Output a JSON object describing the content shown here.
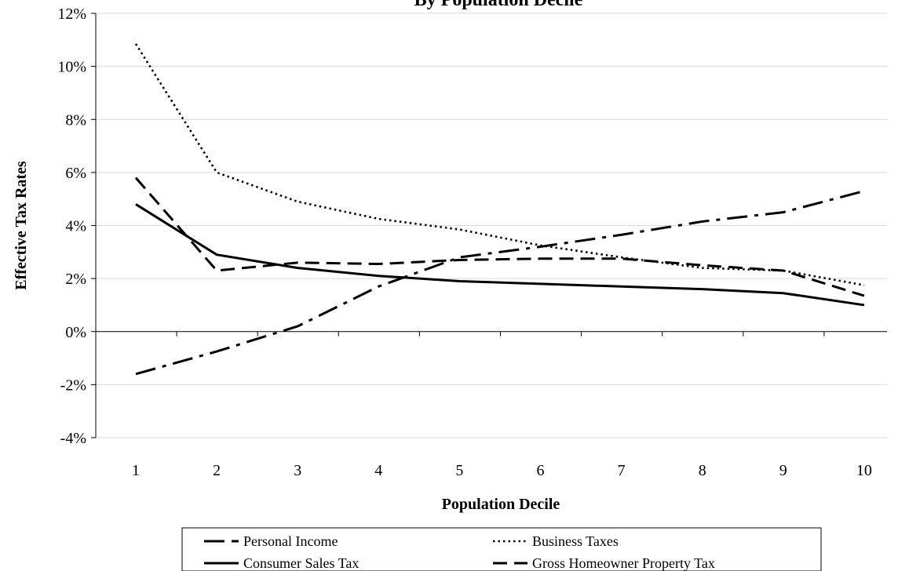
{
  "chart_data": {
    "type": "line",
    "title": "By Population Decile",
    "xlabel": "Population Decile",
    "ylabel": "Effective Tax Rates",
    "x": [
      1,
      2,
      3,
      4,
      5,
      6,
      7,
      8,
      9,
      10
    ],
    "x_tick_labels": [
      "1",
      "2",
      "3",
      "4",
      "5",
      "6",
      "7",
      "8",
      "9",
      "10"
    ],
    "ylim": [
      -4,
      12
    ],
    "y_ticks": [
      -4,
      -2,
      0,
      2,
      4,
      6,
      8,
      10,
      12
    ],
    "y_tick_labels": [
      "-4%",
      "-2%",
      "0%",
      "2%",
      "4%",
      "6%",
      "8%",
      "10%",
      "12%"
    ],
    "grid": "horizontal",
    "legend_position": "bottom",
    "series": [
      {
        "name": "Personal Income",
        "dash": "long-dash-dot",
        "values": [
          -1.6,
          -0.75,
          0.2,
          1.7,
          2.8,
          3.2,
          3.65,
          4.15,
          4.5,
          5.3
        ]
      },
      {
        "name": "Business Taxes",
        "dash": "dotted",
        "values": [
          10.85,
          6.0,
          4.9,
          4.25,
          3.85,
          3.25,
          2.8,
          2.4,
          2.3,
          1.75
        ]
      },
      {
        "name": "Consumer Sales Tax",
        "dash": "solid",
        "values": [
          4.8,
          2.9,
          2.4,
          2.1,
          1.9,
          1.8,
          1.7,
          1.6,
          1.45,
          1.0
        ]
      },
      {
        "name": "Gross Homeowner Property Tax",
        "dash": "dashed",
        "values": [
          5.8,
          2.3,
          2.6,
          2.55,
          2.7,
          2.75,
          2.75,
          2.5,
          2.3,
          1.35
        ]
      }
    ]
  }
}
